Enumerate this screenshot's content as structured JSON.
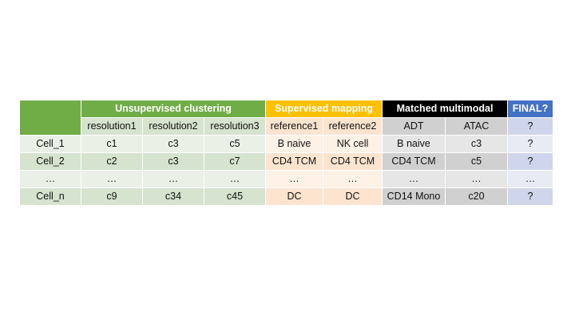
{
  "groups": {
    "unsupervised": "Unsupervised clustering",
    "supervised": "Supervised mapping",
    "multimodal": "Matched multimodal",
    "final": "FINAL?"
  },
  "columns": {
    "resolution1": "resolution1",
    "resolution2": "resolution2",
    "resolution3": "resolution3",
    "reference1": "reference1",
    "reference2": "reference2",
    "adt": "ADT",
    "atac": "ATAC",
    "final": "?"
  },
  "rows": [
    {
      "id": "Cell_1",
      "r1": "c1",
      "r2": "c3",
      "r3": "c5",
      "ref1": "B naive",
      "ref2": "NK cell",
      "adt": "B naive",
      "atac": "c3",
      "final": "?"
    },
    {
      "id": "Cell_2",
      "r1": "c2",
      "r2": "c3",
      "r3": "c7",
      "ref1": "CD4 TCM",
      "ref2": "CD4 TCM",
      "adt": "CD4 TCM",
      "atac": "c5",
      "final": "?"
    },
    {
      "id": "…",
      "r1": "…",
      "r2": "…",
      "r3": "…",
      "ref1": "…",
      "ref2": "…",
      "adt": "…",
      "atac": "…",
      "final": "…"
    },
    {
      "id": "Cell_n",
      "r1": "c9",
      "r2": "c34",
      "r3": "c45",
      "ref1": "DC",
      "ref2": "DC",
      "adt": "CD14 Mono",
      "atac": "c20",
      "final": "?"
    }
  ],
  "colors": {
    "unsupervised": "#70ad47",
    "supervised": "#ffc000",
    "multimodal": "#000000",
    "final": "#4472c4"
  }
}
